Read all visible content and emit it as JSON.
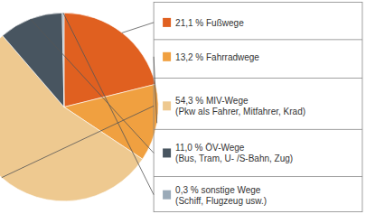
{
  "chart_data": {
    "type": "pie",
    "categories": [
      "21,1 % Fußwege",
      "13,2 % Fahrradwege",
      "54,3 % MIV-Wege\n(Pkw als Fahrer, Mitfahrer, Krad)",
      "11,0 % ÖV-Wege\n(Bus, Tram, U- /S-Bahn, Zug)",
      "0,3 % sonstige Wege\n(Schiff, Flugzeug usw.)"
    ],
    "values": [
      21.1,
      13.2,
      54.3,
      11.0,
      0.3
    ],
    "colors": [
      "#E06020",
      "#F0A040",
      "#EEC990",
      "#485560",
      "#9AAAB8"
    ]
  }
}
